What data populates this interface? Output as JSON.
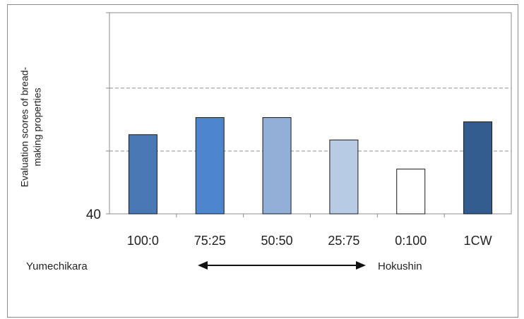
{
  "chart_data": {
    "type": "bar",
    "title": "",
    "xlabel": "",
    "ylabel": "Evaluation scores of bread-\nmaking properties",
    "categories": [
      "100:0",
      "75:25",
      "50:50",
      "25:75",
      "0:100",
      "1CW"
    ],
    "values": [
      71.5,
      78.3,
      78.3,
      69.4,
      57.8,
      76.6
    ],
    "colors": [
      "#4a78b4",
      "#4d86cc",
      "#92afd8",
      "#b8cbe4",
      "#ffffff",
      "#335d8f"
    ],
    "ylim": [
      40,
      120
    ],
    "ytick_labels": [
      {
        "value": 40,
        "label": "40"
      }
    ],
    "gridlines": [
      65,
      90
    ],
    "grid": "horizontal dashed",
    "annotation": {
      "left": "Yumechikara",
      "right": "Hokushin"
    }
  }
}
